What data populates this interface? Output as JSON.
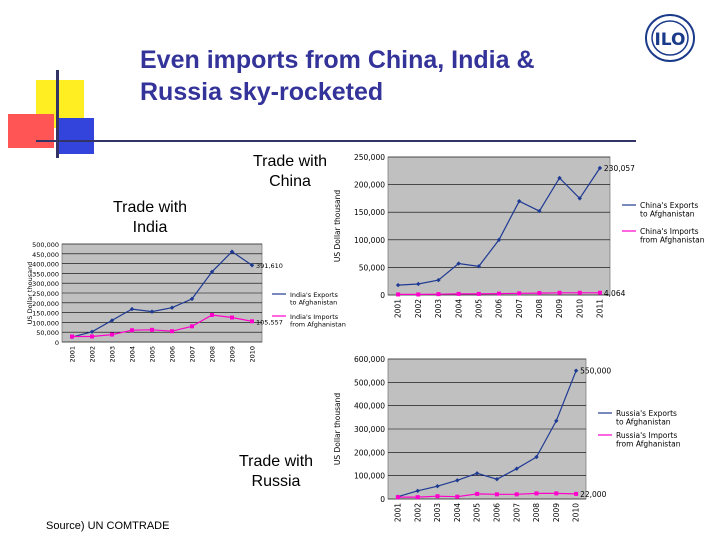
{
  "slide": {
    "title": "Even imports from China, India & Russia sky-rocketed",
    "source": "Source) UN COMTRADE",
    "logo_text": "ILO",
    "labels": {
      "china": "Trade with China",
      "india": "Trade with India",
      "russia": "Trade with Russia"
    }
  },
  "colors": {
    "title": "#333399",
    "exports": "#1f3a93",
    "imports": "#ff00cc",
    "deco_yellow": "#ffee22",
    "deco_red": "#ff3333",
    "deco_blue": "#3344dd",
    "deco_dark": "#333366"
  },
  "chart_data": [
    {
      "id": "china",
      "type": "line",
      "ylabel": "US Dollar thousand",
      "x": [
        "2001",
        "2002",
        "2003",
        "2004",
        "2005",
        "2006",
        "2007",
        "2008",
        "2009",
        "2010",
        "2011"
      ],
      "ylim": [
        0,
        250000
      ],
      "yticks": [
        "0",
        "50,000",
        "100,000",
        "150,000",
        "200,000",
        "250,000"
      ],
      "grid": true,
      "legend": "right",
      "series": [
        {
          "name": "China's Exports to Afghanistan",
          "values": [
            18000,
            20000,
            27000,
            57000,
            52000,
            100000,
            170000,
            152000,
            212000,
            175000,
            230057
          ],
          "end_label": "230,057"
        },
        {
          "name": "China's Imports from Afghanistan",
          "values": [
            1000,
            1000,
            1500,
            2000,
            2000,
            2500,
            3000,
            3500,
            4000,
            4000,
            4064
          ],
          "end_label": "4,064"
        }
      ]
    },
    {
      "id": "india",
      "type": "line",
      "ylabel": "US Dollar thousand",
      "x": [
        "2001",
        "2002",
        "2003",
        "2004",
        "2005",
        "2006",
        "2007",
        "2008",
        "2009",
        "2010"
      ],
      "ylim": [
        0,
        500000
      ],
      "yticks": [
        "0",
        "50,000",
        "100,000",
        "150,000",
        "200,000",
        "250,000",
        "300,000",
        "350,000",
        "400,000",
        "450,000",
        "500,000"
      ],
      "grid": true,
      "legend": "right",
      "series": [
        {
          "name": "India's Exports to Afghanistan",
          "values": [
            25000,
            52000,
            110000,
            168000,
            155000,
            175000,
            220000,
            358000,
            461000,
            391610
          ],
          "end_label": "391,610"
        },
        {
          "name": "India's Imports from Afghanistan",
          "values": [
            28000,
            28000,
            38000,
            60000,
            62000,
            55000,
            80000,
            138000,
            125000,
            105557
          ],
          "end_label": "105,557"
        }
      ]
    },
    {
      "id": "russia",
      "type": "line",
      "ylabel": "US Dollar thousand",
      "x": [
        "2001",
        "2002",
        "2003",
        "2004",
        "2005",
        "2006",
        "2007",
        "2008",
        "2009",
        "2010"
      ],
      "ylim": [
        0,
        600000
      ],
      "yticks": [
        "0",
        "100,000",
        "200,000",
        "300,000",
        "400,000",
        "500,000",
        "600,000"
      ],
      "grid": true,
      "legend": "right",
      "series": [
        {
          "name": "Russia's Exports to Afghanistan",
          "values": [
            10000,
            35000,
            55000,
            80000,
            110000,
            85000,
            130000,
            180000,
            335000,
            550000
          ],
          "end_label": "550,000"
        },
        {
          "name": "Russia's Imports from Afghanistan",
          "values": [
            8000,
            8000,
            12000,
            10000,
            22000,
            20000,
            20000,
            24000,
            24000,
            22000
          ],
          "end_label": "22,000"
        }
      ]
    }
  ]
}
